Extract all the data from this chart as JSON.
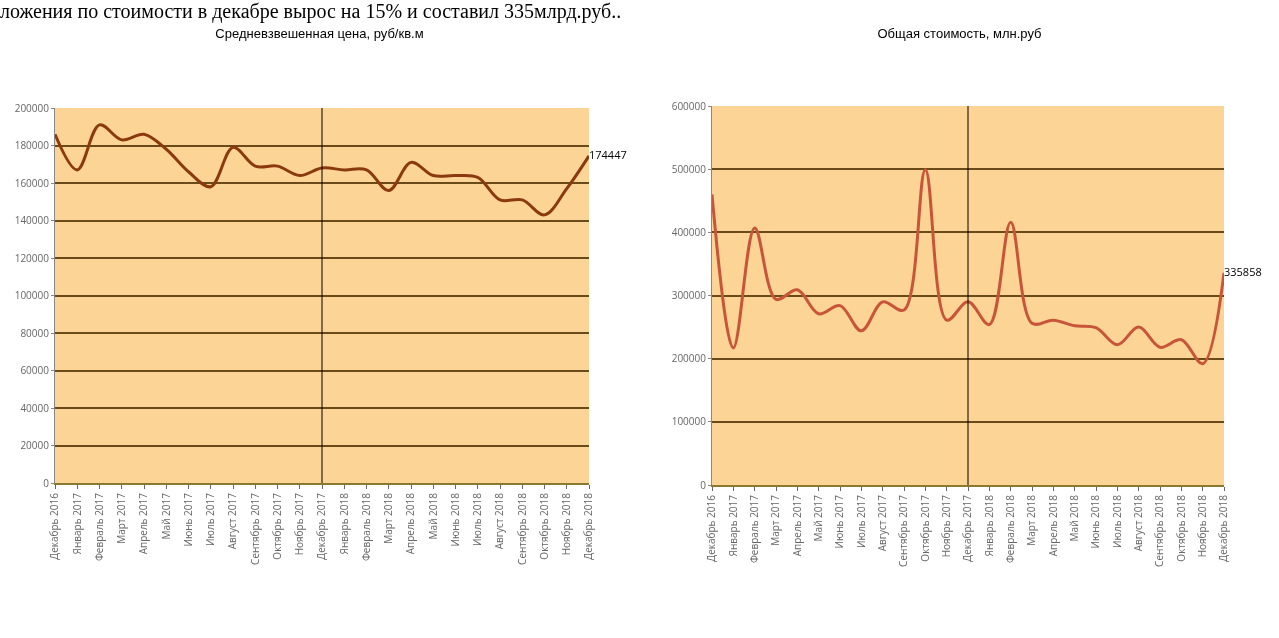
{
  "chart_data": [
    {
      "type": "line",
      "title": "Средневзвешенная цена, руб/кв.м",
      "annotations": [
        "ложения по стоимости в декабре вырос на 15% и составил 335млрд.руб.."
      ],
      "categories": [
        "Декабрь 2016",
        "Январь 2017",
        "Февраль 2017",
        "Март 2017",
        "Апрель 2017",
        "Май 2017",
        "Июнь 2017",
        "Июль 2017",
        "Август 2017",
        "Сентябрь 2017",
        "Октябрь 2017",
        "Ноябрь 2017",
        "Декабрь 2017",
        "Январь 2018",
        "Февраль 2018",
        "Март 2018",
        "Апрель 2018",
        "Май 2018",
        "Июнь 2018",
        "Июль 2018",
        "Август 2018",
        "Сентябрь 2018",
        "Октябрь 2018",
        "Ноябрь 2018",
        "Декабрь 2018"
      ],
      "series": [
        {
          "color": "#8b3a0f",
          "values": [
            186000,
            167000,
            191000,
            183000,
            186000,
            178000,
            166000,
            158000,
            179000,
            169000,
            169000,
            164000,
            168000,
            167000,
            167000,
            156000,
            171000,
            164000,
            164000,
            163000,
            151000,
            151000,
            143000,
            157000,
            174447
          ],
          "value_labels": [
            null,
            null,
            null,
            null,
            null,
            null,
            null,
            null,
            null,
            null,
            null,
            null,
            null,
            null,
            null,
            null,
            null,
            null,
            null,
            null,
            null,
            null,
            null,
            null,
            "174447"
          ]
        }
      ],
      "ylim": [
        0,
        200000
      ],
      "yticks": [
        0,
        20000,
        40000,
        60000,
        80000,
        100000,
        120000,
        140000,
        160000,
        180000,
        200000
      ],
      "grid": "y",
      "marker": "none",
      "line_style": "solid",
      "ref_lines": [
        {
          "axis": "x",
          "value": "Декабрь 2017",
          "color": "#000000"
        }
      ]
    },
    {
      "type": "line",
      "title": "Общая стоимость, млн.руб",
      "categories": [
        "Декабрь 2016",
        "Январь 2017",
        "Февраль 2017",
        "Март 2017",
        "Апрель 2017",
        "Май 2017",
        "Июнь 2017",
        "Июль 2017",
        "Август 2017",
        "Сентябрь 2017",
        "Октябрь 2017",
        "Ноябрь 2017",
        "Декабрь 2017",
        "Январь 2018",
        "Февраль 2018",
        "Март 2018",
        "Апрель 2018",
        "Май 2018",
        "Июнь 2018",
        "Июль 2018",
        "Август 2018",
        "Сентябрь 2018",
        "Октябрь 2018",
        "Ноябрь 2018",
        "Декабрь 2018"
      ],
      "series": [
        {
          "color": "#c8553a",
          "values": [
            460000,
            217000,
            407000,
            294000,
            309000,
            271000,
            284000,
            244000,
            290000,
            277000,
            499000,
            261000,
            290000,
            254000,
            416000,
            256000,
            261000,
            252000,
            249000,
            222000,
            250000,
            218000,
            230000,
            192000,
            335858
          ],
          "value_labels": [
            null,
            null,
            null,
            null,
            null,
            null,
            null,
            null,
            null,
            null,
            null,
            null,
            null,
            null,
            null,
            null,
            null,
            null,
            null,
            null,
            null,
            null,
            null,
            null,
            "335858"
          ]
        }
      ],
      "ylim": [
        0,
        600000
      ],
      "yticks": [
        0,
        100000,
        200000,
        300000,
        400000,
        500000,
        600000
      ],
      "grid": "y",
      "marker": "none",
      "line_style": "solid",
      "ref_lines": [
        {
          "axis": "x",
          "value": "Декабрь 2017",
          "color": "#000000"
        }
      ]
    }
  ]
}
